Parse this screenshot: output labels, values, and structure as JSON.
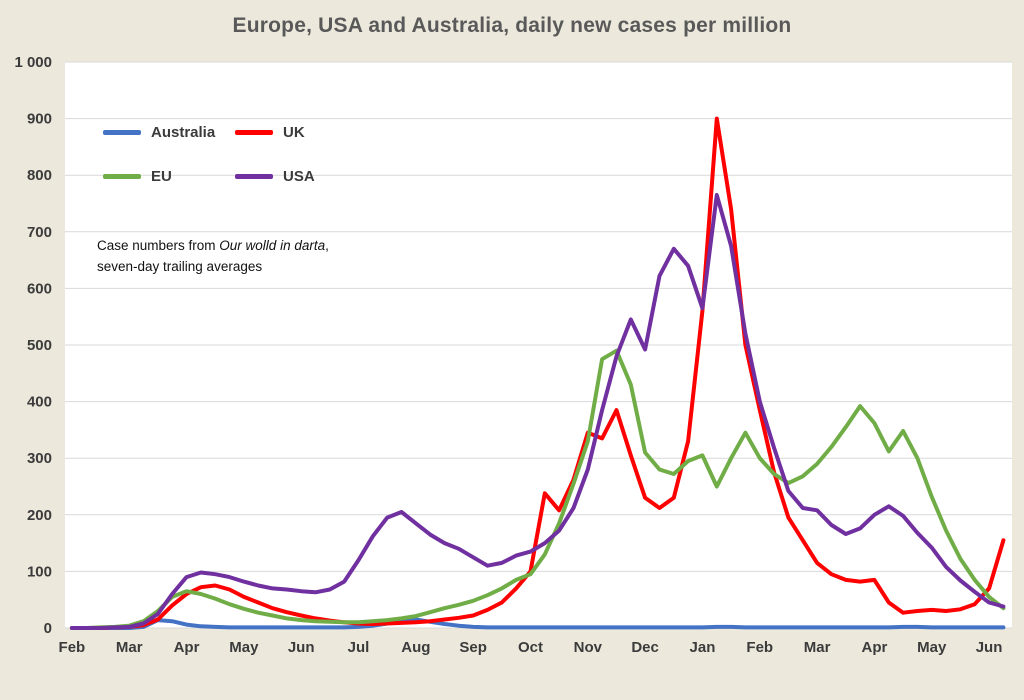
{
  "title": "Europe, USA and Australia, daily new cases per million",
  "annotation": {
    "prefix": "Case numbers from ",
    "source_italic": "Our wolld in darta",
    "suffix": ",",
    "line2": "seven-day trailing averages"
  },
  "colors": {
    "background": "#ECE9DC",
    "plot_background": "#FFFFFF",
    "gridline": "#D9D9D9",
    "title_text": "#595959",
    "tick_text": "#3B3B3B",
    "australia": "#4472C4",
    "uk": "#FF0000",
    "eu": "#70AD47",
    "usa": "#7030A0"
  },
  "chart_data": {
    "type": "line",
    "title": "Europe, USA and Australia, daily new cases per million",
    "xlabel": "",
    "ylabel": "",
    "grid": "horizontal-only",
    "legend_position": "inside-top-left",
    "x_range": [
      -0.12,
      16.4
    ],
    "y_range": [
      0,
      1000
    ],
    "x_start": 0,
    "x_step": 0.25,
    "x_unit": "months since Feb 2020",
    "x_ticks": [
      {
        "value": 0,
        "label": "Feb"
      },
      {
        "value": 1,
        "label": "Mar"
      },
      {
        "value": 2,
        "label": "Apr"
      },
      {
        "value": 3,
        "label": "May"
      },
      {
        "value": 4,
        "label": "Jun"
      },
      {
        "value": 5,
        "label": "Jul"
      },
      {
        "value": 6,
        "label": "Aug"
      },
      {
        "value": 7,
        "label": "Sep"
      },
      {
        "value": 8,
        "label": "Oct"
      },
      {
        "value": 9,
        "label": "Nov"
      },
      {
        "value": 10,
        "label": "Dec"
      },
      {
        "value": 11,
        "label": "Jan"
      },
      {
        "value": 12,
        "label": "Feb"
      },
      {
        "value": 13,
        "label": "Mar"
      },
      {
        "value": 14,
        "label": "Apr"
      },
      {
        "value": 15,
        "label": "May"
      },
      {
        "value": 16,
        "label": "Jun"
      }
    ],
    "y_ticks": [
      {
        "value": 0,
        "label": "0"
      },
      {
        "value": 100,
        "label": "100"
      },
      {
        "value": 200,
        "label": "200"
      },
      {
        "value": 300,
        "label": "300"
      },
      {
        "value": 400,
        "label": "400"
      },
      {
        "value": 500,
        "label": "500"
      },
      {
        "value": 600,
        "label": "600"
      },
      {
        "value": 700,
        "label": "700"
      },
      {
        "value": 800,
        "label": "800"
      },
      {
        "value": 900,
        "label": "900"
      },
      {
        "value": 1000,
        "label": "1 000"
      }
    ],
    "series": [
      {
        "name": "Australia",
        "color": "#4472C4",
        "values": [
          0,
          0,
          0,
          0,
          0,
          2,
          14,
          12,
          6,
          3,
          2,
          1,
          1,
          1,
          1,
          1,
          1,
          1,
          1,
          1,
          2,
          4,
          8,
          13,
          15,
          11,
          7,
          4,
          2,
          1,
          1,
          1,
          1,
          1,
          1,
          1,
          1,
          1,
          1,
          1,
          1,
          1,
          1,
          1,
          1,
          2,
          2,
          1,
          1,
          1,
          1,
          1,
          1,
          1,
          1,
          1,
          1,
          1,
          2,
          2,
          1,
          1,
          1,
          1,
          1,
          1
        ]
      },
      {
        "name": "UK",
        "color": "#FF0000",
        "values": [
          0,
          0,
          0,
          1,
          2,
          5,
          15,
          40,
          60,
          72,
          75,
          68,
          55,
          45,
          35,
          28,
          22,
          17,
          13,
          10,
          8,
          7,
          8,
          9,
          10,
          12,
          15,
          18,
          22,
          32,
          45,
          70,
          100,
          238,
          208,
          262,
          345,
          335,
          385,
          305,
          230,
          212,
          230,
          330,
          560,
          900,
          740,
          500,
          385,
          275,
          195,
          155,
          115,
          95,
          85,
          82,
          85,
          45,
          27,
          30,
          32,
          30,
          33,
          42,
          70,
          155
        ]
      },
      {
        "name": "EU",
        "color": "#70AD47",
        "values": [
          0,
          0,
          1,
          2,
          4,
          12,
          30,
          55,
          65,
          60,
          52,
          42,
          34,
          27,
          22,
          17,
          14,
          12,
          11,
          10,
          10,
          12,
          14,
          17,
          21,
          28,
          35,
          41,
          48,
          58,
          70,
          85,
          95,
          130,
          185,
          255,
          330,
          475,
          490,
          430,
          310,
          280,
          272,
          295,
          305,
          250,
          300,
          345,
          300,
          272,
          256,
          268,
          290,
          320,
          355,
          392,
          362,
          312,
          348,
          300,
          232,
          172,
          122,
          85,
          55,
          35
        ]
      },
      {
        "name": "USA",
        "color": "#7030A0",
        "values": [
          0,
          0,
          0,
          1,
          2,
          8,
          25,
          60,
          90,
          98,
          95,
          90,
          82,
          75,
          70,
          68,
          65,
          63,
          68,
          82,
          120,
          162,
          195,
          205,
          185,
          165,
          150,
          140,
          125,
          110,
          115,
          128,
          135,
          150,
          172,
          212,
          280,
          385,
          480,
          545,
          492,
          622,
          670,
          640,
          565,
          765,
          675,
          520,
          400,
          318,
          242,
          212,
          208,
          182,
          166,
          176,
          200,
          215,
          198,
          168,
          142,
          108,
          84,
          64,
          45,
          38
        ]
      }
    ]
  }
}
